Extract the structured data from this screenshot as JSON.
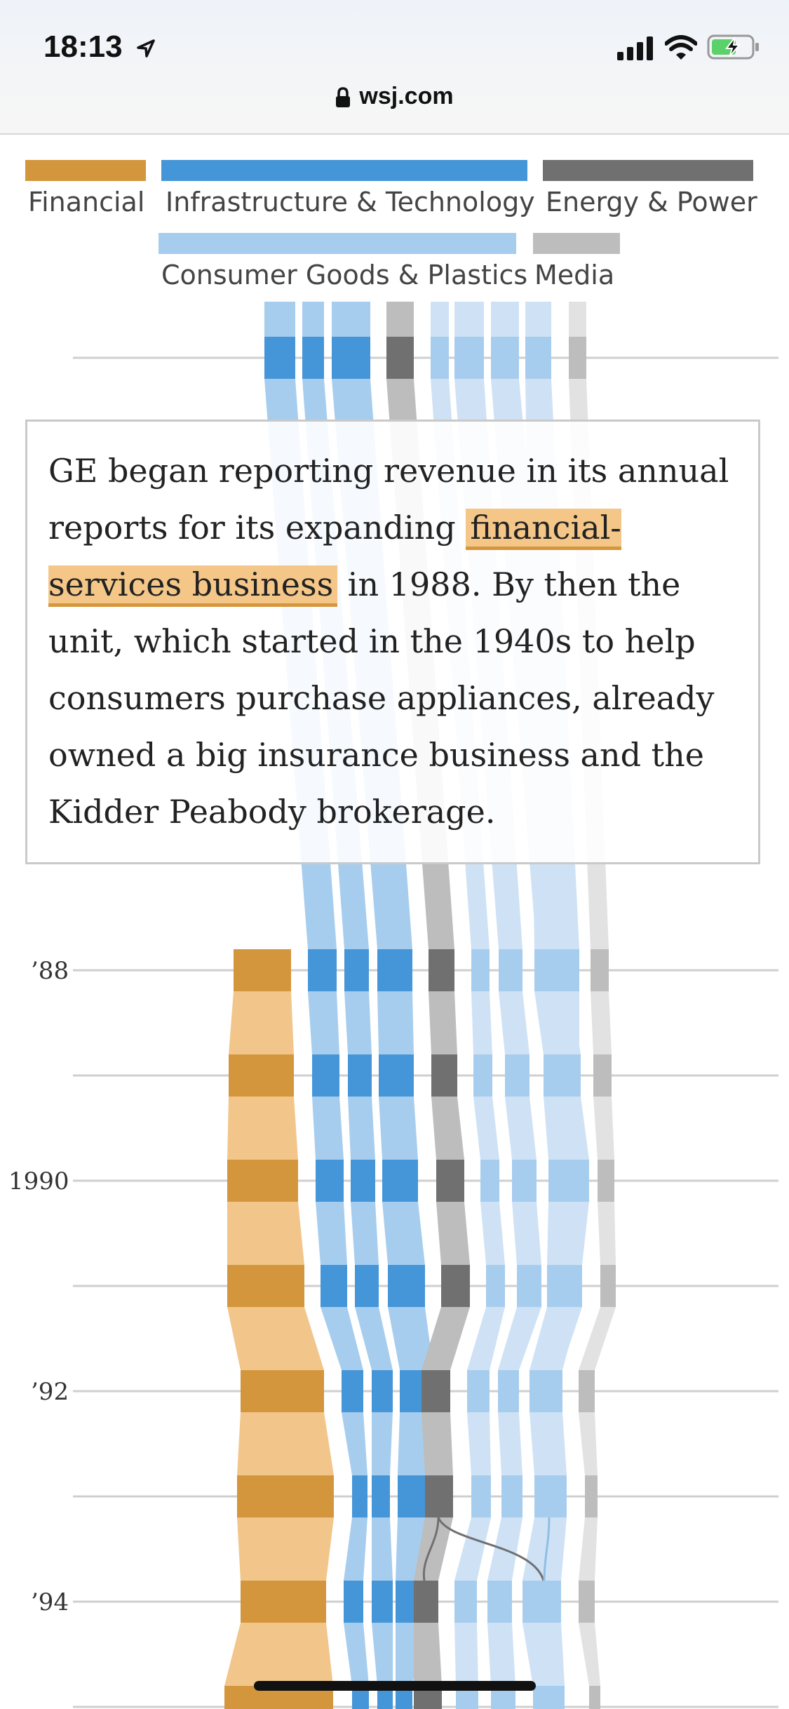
{
  "status_bar": {
    "time": "18:13",
    "url": "wsj.com",
    "icons": [
      "location-arrow-icon",
      "signal-icon",
      "wifi-icon",
      "battery-charging-icon"
    ]
  },
  "legend": [
    {
      "label": "Financial",
      "color": "#d4963c"
    },
    {
      "label": "Infrastructure & Technology",
      "color": "#4596d8"
    },
    {
      "label": "Energy & Power",
      "color": "#707070"
    },
    {
      "label": "Consumer Goods & Plastics",
      "color": "#a7cdee"
    },
    {
      "label": "Media",
      "color": "#bdbdbd"
    }
  ],
  "callout": {
    "text_before": "GE began reporting revenue in its annual reports for its expanding ",
    "highlight": "financial-services business",
    "text_after": " in 1988. By then the unit, which started in the 1940s to help consumers purchase appliances, already owned a big insurance business and the Kidder Peabody brokerage."
  },
  "year_labels": [
    "’88",
    "1990",
    "’92",
    "’94"
  ]
}
